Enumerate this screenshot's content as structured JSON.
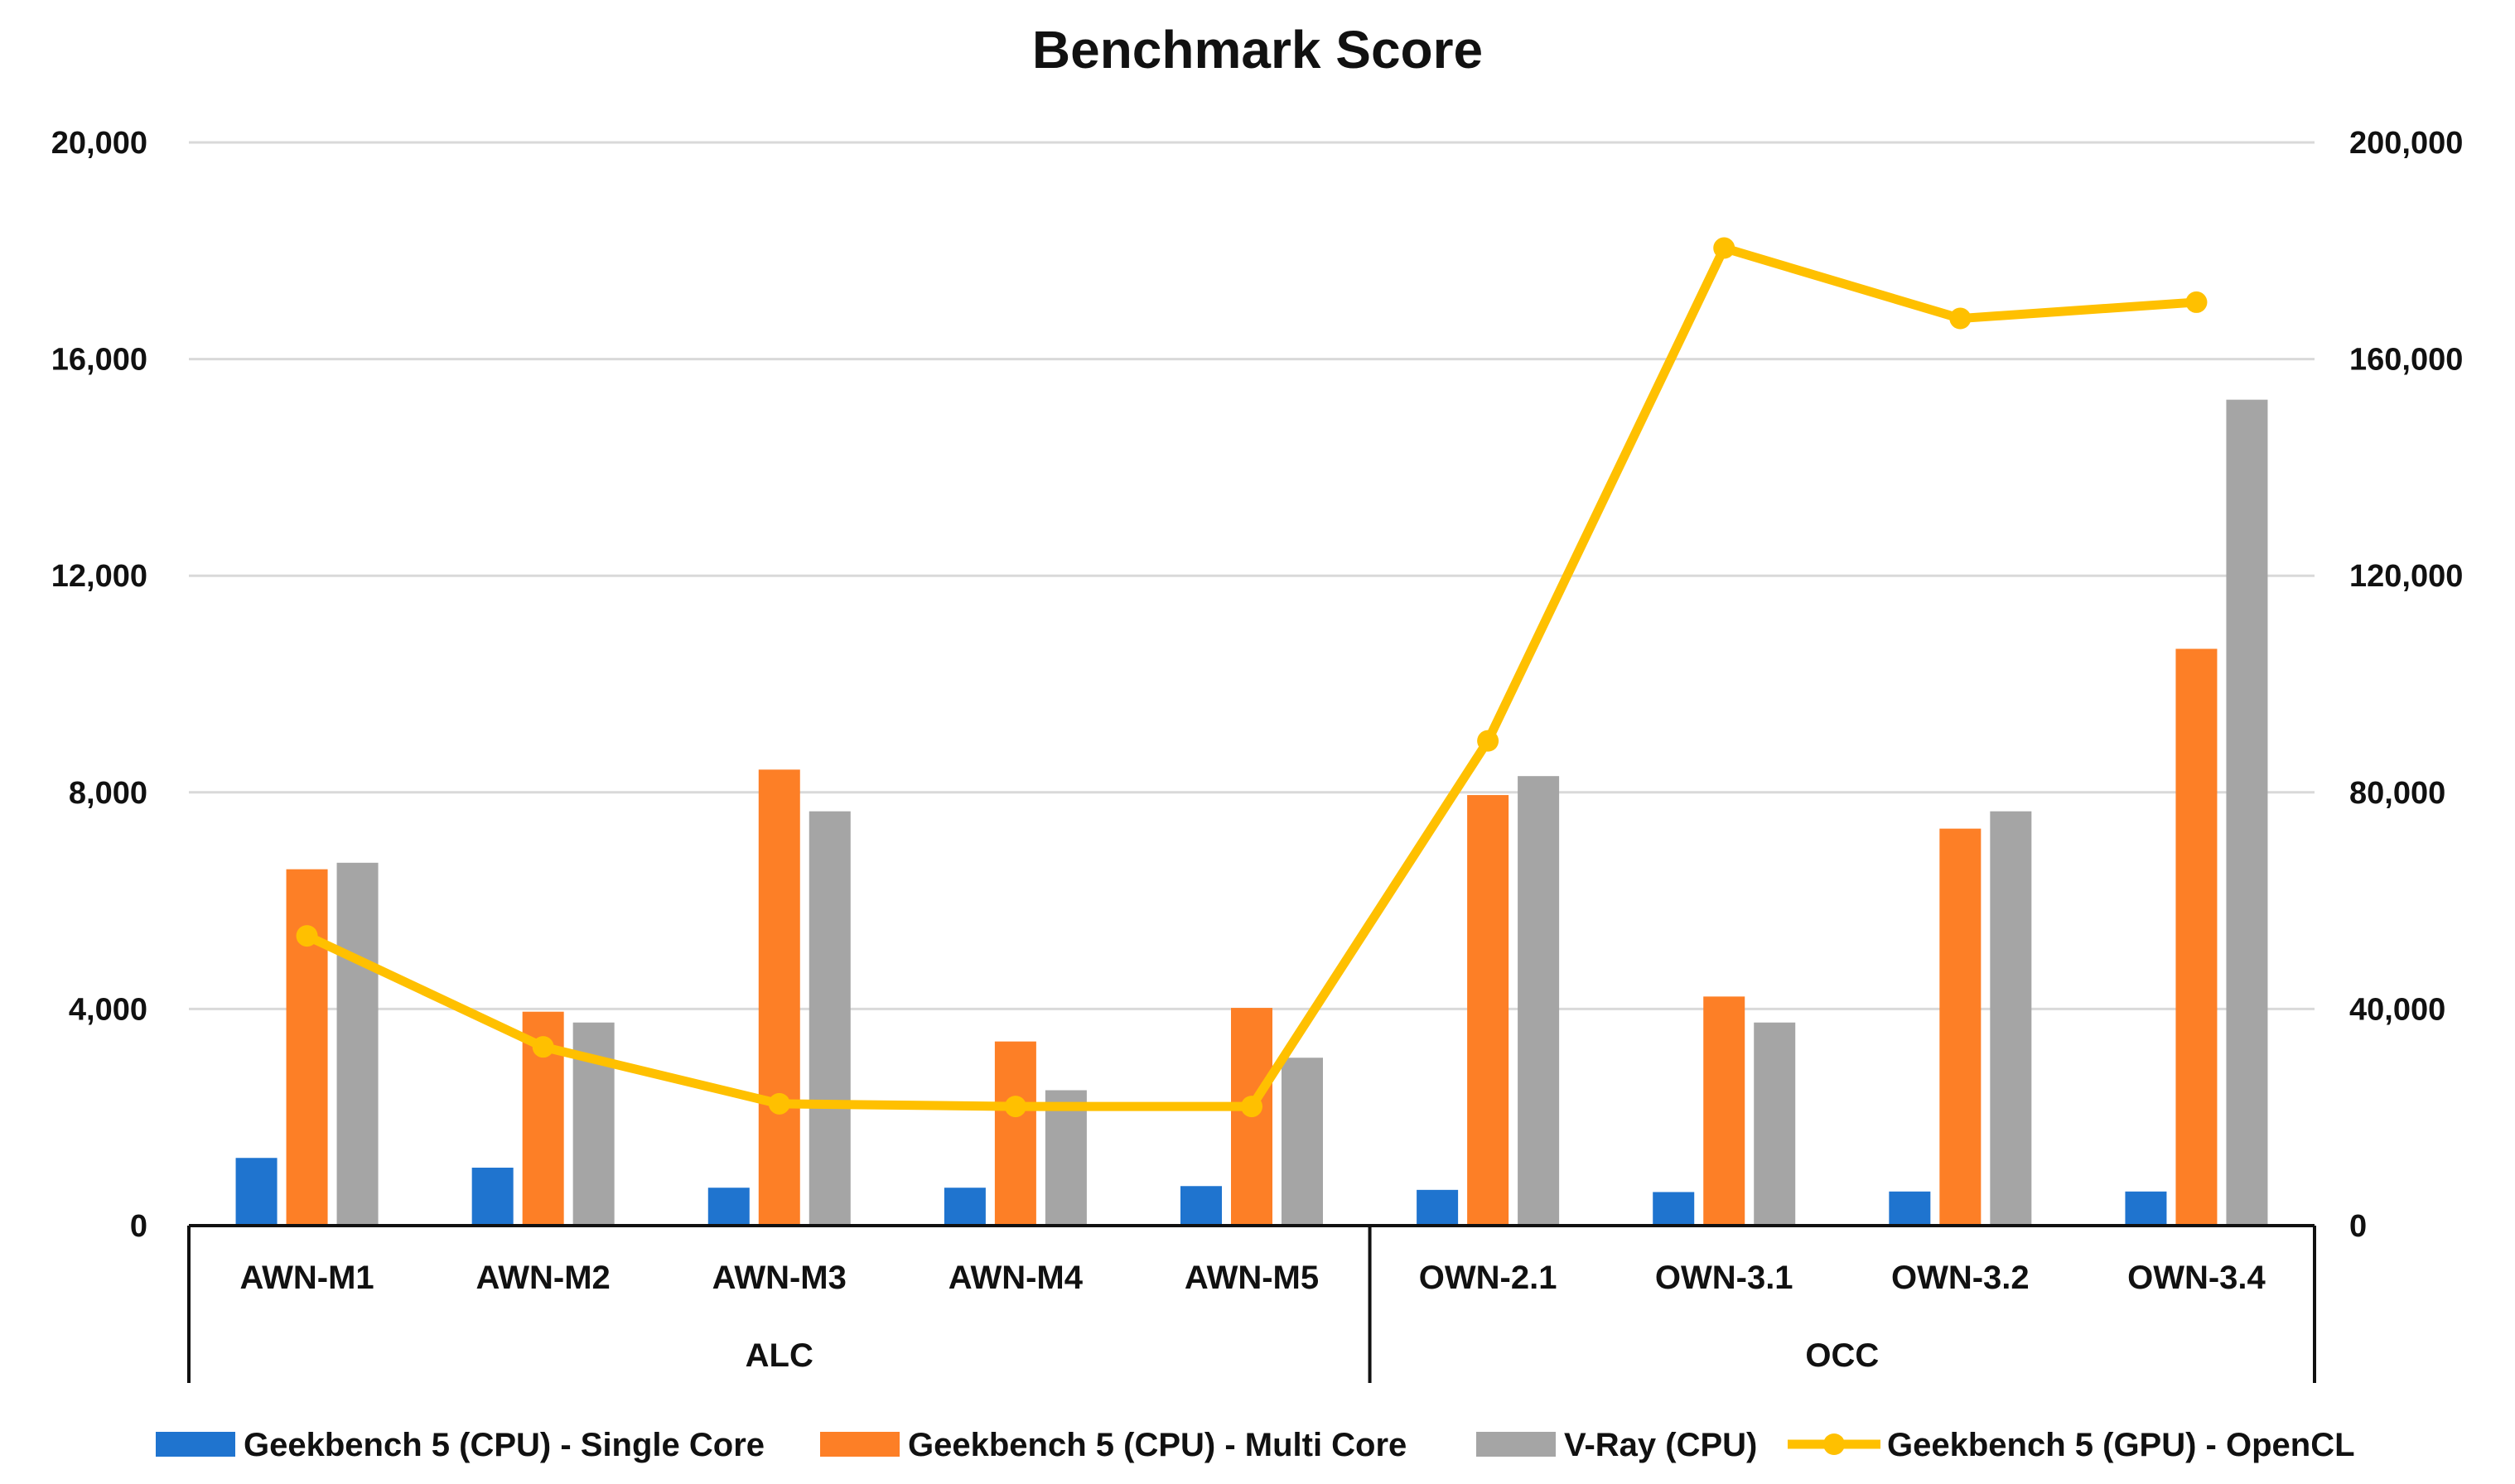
{
  "chart_data": {
    "type": "bar",
    "title": "Benchmark Score",
    "categories": [
      "AWN-M1",
      "AWN-M2",
      "AWN-M3",
      "AWN-M4",
      "AWN-M5",
      "OWN-2.1",
      "OWN-3.1",
      "OWN-3.2",
      "OWN-3.4"
    ],
    "groups": [
      {
        "label": "ALC",
        "categories": [
          "AWN-M1",
          "AWN-M2",
          "AWN-M3",
          "AWN-M4",
          "AWN-M5"
        ]
      },
      {
        "label": "OCC",
        "categories": [
          "OWN-2.1",
          "OWN-3.1",
          "OWN-3.2",
          "OWN-3.4"
        ]
      }
    ],
    "y_left": {
      "ticks": [
        "0",
        "4,000",
        "8,000",
        "12,000",
        "16,000",
        "20,000"
      ],
      "ylim": [
        0,
        20000
      ]
    },
    "y_right": {
      "ticks": [
        "0",
        "40,000",
        "80,000",
        "120,000",
        "160,000",
        "200,000"
      ],
      "ylim": [
        0,
        200000
      ]
    },
    "grid": true,
    "legend_position": "bottom",
    "series": [
      {
        "name": "Geekbench 5 (CPU) - Single Core",
        "kind": "bar",
        "axis": "left",
        "color": "#1f74cf",
        "values": [
          1250,
          1070,
          700,
          700,
          730,
          660,
          620,
          630,
          630
        ]
      },
      {
        "name": "Geekbench 5 (CPU) - Multi Core",
        "kind": "bar",
        "axis": "left",
        "color": "#fd7f26",
        "values": [
          6580,
          3950,
          8420,
          3400,
          4020,
          7950,
          4230,
          7330,
          10650
        ]
      },
      {
        "name": "V-Ray (CPU)",
        "kind": "bar",
        "axis": "left",
        "color": "#a5a5a5",
        "values": [
          6700,
          3750,
          7650,
          2500,
          3100,
          8300,
          3750,
          7650,
          15250
        ]
      },
      {
        "name": "Geekbench 5 (GPU) - OpenCL",
        "kind": "line",
        "axis": "right",
        "color": "#ffc000",
        "values": [
          53500,
          33000,
          22500,
          22000,
          22000,
          89500,
          180500,
          167500,
          170500
        ]
      }
    ]
  }
}
